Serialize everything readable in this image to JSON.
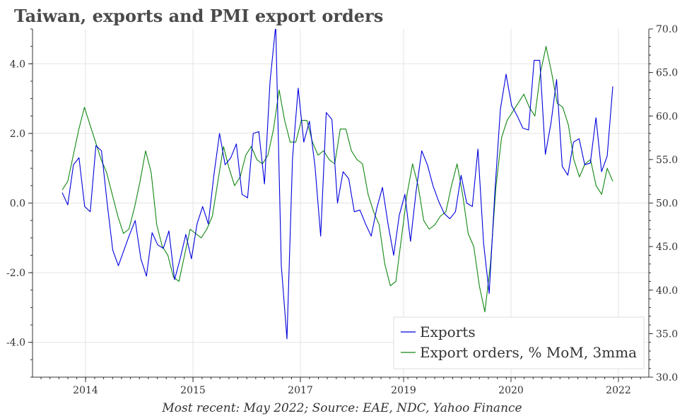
{
  "chart_data": {
    "type": "line",
    "title": "Taiwan, exports and PMI export orders",
    "source": "Most recent: May 2022; Source: EAE, NDC, Yahoo Finance",
    "x_ticks": [
      "2014",
      "2015",
      "2017",
      "2019",
      "2020",
      "2022"
    ],
    "left_axis": {
      "ylim": [
        -5,
        5
      ],
      "ticks": [
        "4.0",
        "2.0",
        "0.0",
        "-2.0",
        "-4.0"
      ]
    },
    "right_axis": {
      "ylim": [
        30,
        70
      ],
      "ticks": [
        "70.0",
        "65.0",
        "60.0",
        "55.0",
        "50.0",
        "45.0",
        "40.0",
        "35.0",
        "30.0"
      ]
    },
    "legend_position": "bottom-right",
    "series": [
      {
        "name": "Exports",
        "axis": "left",
        "color": "#0000dd",
        "values": [
          0.3,
          -0.05,
          1.1,
          1.3,
          -0.1,
          -0.25,
          1.65,
          1.5,
          0.0,
          -1.35,
          -1.8,
          -1.35,
          -0.9,
          -0.5,
          -1.6,
          -2.1,
          -0.85,
          -1.2,
          -1.3,
          -0.8,
          -2.2,
          -1.6,
          -0.9,
          -1.6,
          -0.6,
          -0.1,
          -0.6,
          0.8,
          2.0,
          1.1,
          1.3,
          1.7,
          0.25,
          0.15,
          2.0,
          2.05,
          0.55,
          3.5,
          5.1,
          -1.8,
          -3.9,
          1.3,
          3.3,
          1.75,
          2.35,
          1.05,
          -0.95,
          2.6,
          2.4,
          0.0,
          0.9,
          0.7,
          -0.25,
          -0.2,
          -0.6,
          -0.95,
          -0.15,
          0.45,
          -0.6,
          -1.5,
          -0.35,
          0.25,
          -1.1,
          0.35,
          1.5,
          1.1,
          0.5,
          0.05,
          -0.3,
          -0.45,
          -0.25,
          0.8,
          0.0,
          -0.1,
          1.55,
          -1.15,
          -2.6,
          0.3,
          2.7,
          3.7,
          2.8,
          2.5,
          2.15,
          2.1,
          4.1,
          4.1,
          1.4,
          2.3,
          3.55,
          1.05,
          0.8,
          1.75,
          1.85,
          1.1,
          1.15,
          2.45,
          0.9,
          1.35,
          3.35
        ]
      },
      {
        "name": "Export orders, % MoM, 3mma",
        "axis": "right",
        "color": "#118811",
        "values": [
          51.5,
          52.5,
          55.5,
          58.5,
          61.0,
          59.0,
          57.0,
          55.0,
          53.5,
          51.0,
          48.5,
          46.5,
          47.0,
          49.5,
          52.5,
          56.0,
          53.5,
          47.5,
          45.0,
          44.0,
          41.5,
          41.0,
          44.0,
          47.0,
          46.5,
          46.0,
          47.0,
          48.5,
          52.5,
          56.5,
          54.0,
          52.0,
          53.0,
          55.5,
          56.5,
          55.0,
          54.5,
          55.5,
          58.5,
          63.0,
          59.5,
          57.0,
          57.0,
          59.5,
          59.5,
          57.0,
          55.5,
          56.0,
          55.0,
          54.5,
          58.5,
          58.5,
          56.0,
          55.0,
          54.5,
          51.0,
          49.0,
          47.5,
          43.0,
          40.5,
          41.0,
          46.0,
          51.0,
          54.5,
          52.0,
          48.0,
          47.0,
          47.5,
          48.5,
          49.0,
          52.0,
          54.5,
          51.0,
          46.5,
          45.0,
          40.5,
          37.5,
          43.0,
          52.0,
          57.5,
          59.5,
          60.5,
          61.5,
          62.5,
          61.0,
          60.0,
          65.0,
          68.0,
          65.0,
          61.5,
          61.0,
          59.0,
          55.0,
          53.0,
          54.5,
          55.0,
          52.0,
          51.0,
          54.0,
          52.5
        ]
      }
    ]
  }
}
